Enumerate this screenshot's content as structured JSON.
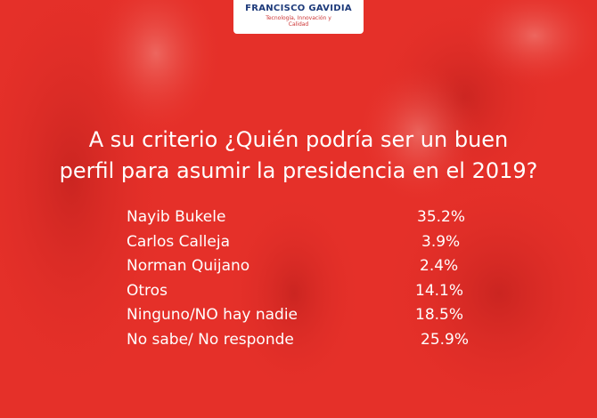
{
  "header": {
    "institution": "FRANCISCO GAVIDIA",
    "tagline": "Tecnología, Innovación y Calidad"
  },
  "title": [
    "A su criterio ¿Quién podría ser un buen",
    "perfil para asumir la presidencia en el 2019?"
  ],
  "table": {
    "rows": [
      [
        "Nayib Bukele",
        "35.2%"
      ],
      [
        "Carlos Calleja",
        "3.9%"
      ],
      [
        "Norman Quijano",
        "2.4%"
      ],
      [
        "Otros",
        "14.1%"
      ],
      [
        "Ninguno/NO hay nadie",
        "18.5%"
      ],
      [
        "No sabe/ No responde",
        "25.9%"
      ]
    ]
  }
}
